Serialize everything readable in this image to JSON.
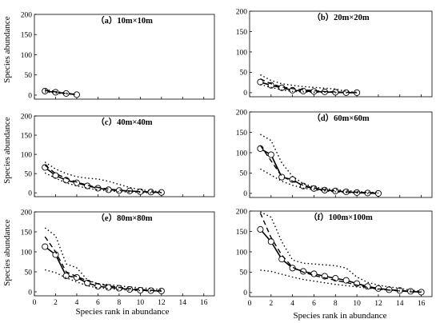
{
  "figure": {
    "ylabel": "Species abundance",
    "xlabel_left": "Species rank in abundance",
    "xlabel_right": "Species rank in abundance"
  },
  "chart_data": [
    {
      "type": "line",
      "title": "（a）10m×10m",
      "xlim": [
        0,
        17
      ],
      "ylim": [
        -10,
        200
      ],
      "xticks": [
        0,
        2,
        4,
        6,
        8,
        10,
        12,
        14,
        16
      ],
      "yticks": [
        0,
        50,
        100,
        150,
        200
      ],
      "show_y_ticklabels": true,
      "show_x_ticklabels": false,
      "series": [
        {
          "style": "observed",
          "x": [
            1,
            2,
            3,
            4
          ],
          "y": [
            10,
            7,
            4,
            1
          ]
        },
        {
          "style": "model",
          "x": [
            1,
            2,
            3,
            4
          ],
          "y": [
            12,
            8,
            4,
            2
          ]
        },
        {
          "style": "ci_upper",
          "x": [
            1,
            2,
            3,
            4
          ],
          "y": [
            14,
            9,
            5,
            2
          ]
        },
        {
          "style": "ci_lower",
          "x": [
            1,
            2,
            3,
            4
          ],
          "y": [
            8,
            5,
            3,
            1
          ]
        }
      ]
    },
    {
      "type": "line",
      "title": "（b）20m×20m",
      "xlim": [
        0,
        17
      ],
      "ylim": [
        -10,
        200
      ],
      "xticks": [
        0,
        2,
        4,
        6,
        8,
        10,
        12,
        14,
        16
      ],
      "yticks": [
        0,
        50,
        100,
        150,
        200
      ],
      "show_y_ticklabels": true,
      "show_x_ticklabels": false,
      "series": [
        {
          "style": "observed",
          "x": [
            1,
            2,
            3,
            4,
            5,
            6,
            7,
            8,
            9,
            10
          ],
          "y": [
            26,
            18,
            12,
            6,
            4,
            3,
            2,
            1,
            0,
            0
          ]
        },
        {
          "style": "model",
          "x": [
            1,
            2,
            3,
            4,
            5,
            6,
            7,
            8,
            9,
            10
          ],
          "y": [
            34,
            22,
            14,
            10,
            7,
            5,
            3,
            2,
            1,
            0
          ]
        },
        {
          "style": "ci_upper",
          "x": [
            1,
            2,
            3,
            4,
            5,
            6,
            7,
            8,
            9,
            10
          ],
          "y": [
            44,
            30,
            22,
            18,
            15,
            13,
            11,
            9,
            3,
            1
          ]
        },
        {
          "style": "ci_lower",
          "x": [
            1,
            2,
            3,
            4,
            5,
            6,
            7,
            8,
            9,
            10
          ],
          "y": [
            20,
            13,
            7,
            3,
            2,
            1,
            1,
            0,
            0,
            0
          ]
        }
      ]
    },
    {
      "type": "line",
      "title": "（c）40m×40m",
      "xlim": [
        0,
        17
      ],
      "ylim": [
        -10,
        200
      ],
      "xticks": [
        0,
        2,
        4,
        6,
        8,
        10,
        12,
        14,
        16
      ],
      "yticks": [
        0,
        50,
        100,
        150,
        200
      ],
      "show_y_ticklabels": true,
      "show_x_ticklabels": false,
      "series": [
        {
          "style": "observed",
          "x": [
            1,
            2,
            3,
            4,
            5,
            6,
            7,
            8,
            9,
            10,
            11,
            12
          ],
          "y": [
            66,
            45,
            33,
            26,
            18,
            12,
            8,
            6,
            5,
            3,
            2,
            1
          ]
        },
        {
          "style": "model",
          "x": [
            1,
            2,
            3,
            4,
            5,
            6,
            7,
            8,
            9,
            10,
            11,
            12
          ],
          "y": [
            72,
            50,
            38,
            28,
            20,
            14,
            10,
            7,
            5,
            3,
            2,
            1
          ]
        },
        {
          "style": "ci_upper",
          "x": [
            1,
            2,
            3,
            4,
            5,
            6,
            7,
            8,
            9,
            10,
            11,
            12
          ],
          "y": [
            80,
            62,
            50,
            42,
            38,
            36,
            30,
            22,
            14,
            8,
            5,
            3
          ]
        },
        {
          "style": "ci_lower",
          "x": [
            1,
            2,
            3,
            4,
            5,
            6,
            7,
            8,
            9,
            10,
            11,
            12
          ],
          "y": [
            52,
            38,
            26,
            18,
            12,
            8,
            5,
            3,
            2,
            1,
            0,
            0
          ]
        }
      ]
    },
    {
      "type": "line",
      "title": "（d）60m×60m",
      "xlim": [
        0,
        17
      ],
      "ylim": [
        -10,
        200
      ],
      "xticks": [
        0,
        2,
        4,
        6,
        8,
        10,
        12,
        14,
        16
      ],
      "yticks": [
        0,
        50,
        100,
        150,
        200
      ],
      "show_y_ticklabels": true,
      "show_x_ticklabels": false,
      "series": [
        {
          "style": "observed",
          "x": [
            1,
            2,
            3,
            4,
            5,
            6,
            7,
            8,
            9,
            10,
            11,
            12
          ],
          "y": [
            110,
            95,
            40,
            34,
            18,
            12,
            8,
            6,
            4,
            2,
            1,
            0
          ]
        },
        {
          "style": "model",
          "x": [
            1,
            2,
            3,
            4,
            5,
            6,
            7,
            8,
            9,
            10,
            11,
            12
          ],
          "y": [
            118,
            80,
            42,
            30,
            20,
            13,
            9,
            6,
            4,
            3,
            2,
            1
          ]
        },
        {
          "style": "ci_upper",
          "x": [
            1,
            2,
            3,
            4,
            5,
            6,
            7,
            8,
            9,
            10,
            11,
            12
          ],
          "y": [
            145,
            130,
            75,
            42,
            24,
            16,
            12,
            9,
            7,
            5,
            3,
            2
          ]
        },
        {
          "style": "ci_lower",
          "x": [
            1,
            2,
            3,
            4,
            5,
            6,
            7,
            8,
            9,
            10,
            11,
            12
          ],
          "y": [
            60,
            45,
            30,
            20,
            13,
            9,
            6,
            4,
            2,
            1,
            0,
            0
          ]
        }
      ]
    },
    {
      "type": "line",
      "title": "（e）80m×80m",
      "xlim": [
        0,
        17
      ],
      "ylim": [
        -10,
        200
      ],
      "xticks": [
        0,
        2,
        4,
        6,
        8,
        10,
        12,
        14,
        16
      ],
      "yticks": [
        0,
        50,
        100,
        150,
        200
      ],
      "show_y_ticklabels": true,
      "show_x_ticklabels": true,
      "series": [
        {
          "style": "observed",
          "x": [
            1,
            2,
            3,
            4,
            5,
            6,
            7,
            8,
            9,
            10,
            11,
            12
          ],
          "y": [
            113,
            93,
            40,
            36,
            22,
            14,
            11,
            9,
            6,
            4,
            3,
            2
          ]
        },
        {
          "style": "model",
          "x": [
            1,
            2,
            3,
            4,
            5,
            6,
            7,
            8,
            9,
            10,
            11,
            12
          ],
          "y": [
            138,
            100,
            50,
            38,
            28,
            20,
            15,
            11,
            8,
            6,
            4,
            2
          ]
        },
        {
          "style": "ci_upper",
          "x": [
            1,
            2,
            3,
            4,
            5,
            6,
            7,
            8,
            9,
            10,
            11,
            12
          ],
          "y": [
            160,
            140,
            70,
            60,
            30,
            20,
            18,
            15,
            12,
            10,
            8,
            5
          ]
        },
        {
          "style": "ci_lower",
          "x": [
            1,
            2,
            3,
            4,
            5,
            6,
            7,
            8,
            9,
            10,
            11,
            12
          ],
          "y": [
            55,
            48,
            35,
            25,
            15,
            10,
            8,
            6,
            4,
            3,
            2,
            1
          ]
        }
      ]
    },
    {
      "type": "line",
      "title": "（f）100m×100m",
      "xlim": [
        0,
        17
      ],
      "ylim": [
        -10,
        200
      ],
      "xticks": [
        0,
        2,
        4,
        6,
        8,
        10,
        12,
        14,
        16
      ],
      "yticks": [
        0,
        50,
        100,
        150,
        200
      ],
      "show_y_ticklabels": true,
      "show_x_ticklabels": true,
      "series": [
        {
          "style": "observed",
          "x": [
            1,
            2,
            3,
            4,
            5,
            6,
            7,
            8,
            9,
            10,
            11,
            12,
            13,
            14,
            15,
            16
          ],
          "y": [
            155,
            125,
            82,
            60,
            52,
            46,
            40,
            35,
            30,
            22,
            15,
            10,
            7,
            5,
            3,
            1
          ]
        },
        {
          "style": "model",
          "x": [
            1,
            2,
            3,
            4,
            5,
            6,
            7,
            8,
            9,
            10,
            11,
            12,
            13,
            14,
            15,
            16
          ],
          "y": [
            195,
            135,
            92,
            62,
            50,
            42,
            36,
            30,
            25,
            18,
            13,
            9,
            6,
            4,
            2,
            1
          ]
        },
        {
          "style": "ci_upper",
          "x": [
            1,
            2,
            3,
            4,
            5,
            6,
            7,
            8,
            9,
            10,
            11,
            12,
            13,
            14,
            15,
            16
          ],
          "y": [
            198,
            185,
            125,
            80,
            72,
            70,
            68,
            66,
            60,
            38,
            25,
            18,
            14,
            10,
            6,
            3
          ]
        },
        {
          "style": "ci_lower",
          "x": [
            1,
            2,
            3,
            4,
            5,
            6,
            7,
            8,
            9,
            10,
            11,
            12,
            13,
            14,
            15,
            16
          ],
          "y": [
            55,
            52,
            45,
            38,
            32,
            28,
            24,
            20,
            17,
            14,
            11,
            8,
            6,
            4,
            2,
            1
          ]
        }
      ]
    }
  ]
}
